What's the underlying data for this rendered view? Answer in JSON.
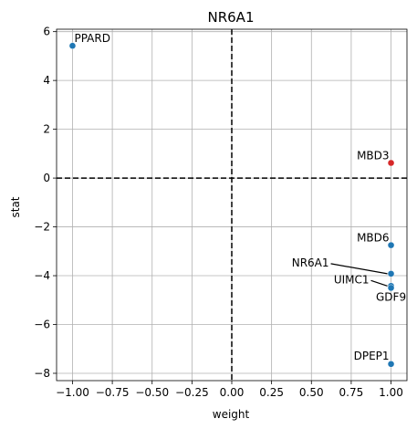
{
  "chart_data": {
    "type": "scatter",
    "title": "NR6A1",
    "xlabel": "weight",
    "ylabel": "stat",
    "xlim": [
      -1.1,
      1.1
    ],
    "ylim": [
      -8.3,
      6.1
    ],
    "xticks": [
      -1.0,
      -0.75,
      -0.5,
      -0.25,
      0.0,
      0.25,
      0.5,
      0.75,
      1.0
    ],
    "xtick_labels": [
      "−1.00",
      "−0.75",
      "−0.50",
      "−0.25",
      "0.00",
      "0.25",
      "0.50",
      "0.75",
      "1.00"
    ],
    "yticks": [
      -8,
      -6,
      -4,
      -2,
      0,
      2,
      4,
      6
    ],
    "ytick_labels": [
      "−8",
      "−6",
      "−4",
      "−2",
      "0",
      "2",
      "4",
      "6"
    ],
    "grid": true,
    "reference_lines": {
      "x": 0,
      "y": 0,
      "style": "dashed"
    },
    "points": [
      {
        "label": "PPARD",
        "x": -1.0,
        "y": 5.42,
        "color": "#1f77b4"
      },
      {
        "label": "MBD3",
        "x": 1.0,
        "y": 0.62,
        "color": "#d62728"
      },
      {
        "label": "MBD6",
        "x": 1.0,
        "y": -2.75,
        "color": "#1f77b4"
      },
      {
        "label": "NR6A1",
        "x": 1.0,
        "y": -3.92,
        "color": "#1f77b4"
      },
      {
        "label": "UIMC1",
        "x": 1.0,
        "y": -4.42,
        "color": "#1f77b4"
      },
      {
        "label": "GDF9",
        "x": 1.0,
        "y": -4.5,
        "color": "#1f77b4"
      },
      {
        "label": "DPEP1",
        "x": 1.0,
        "y": -7.62,
        "color": "#1f77b4"
      }
    ]
  }
}
